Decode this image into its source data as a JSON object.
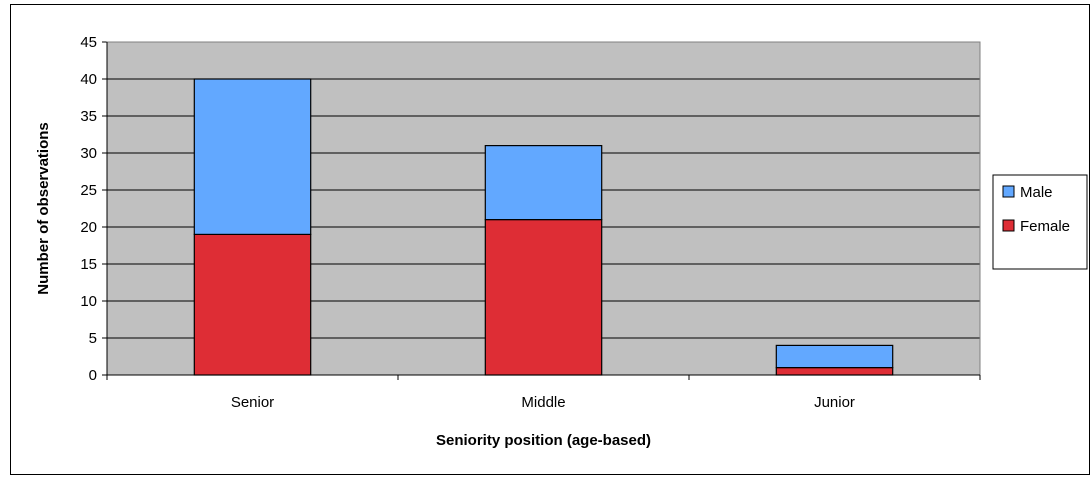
{
  "chart_data": {
    "type": "bar",
    "stacked": true,
    "categories": [
      "Senior",
      "Middle",
      "Junior"
    ],
    "series": [
      {
        "name": "Female",
        "values": [
          19,
          21,
          1
        ],
        "color": "#de2d35"
      },
      {
        "name": "Male",
        "values": [
          21,
          10,
          3
        ],
        "color": "#62a8ff"
      }
    ],
    "xlabel": "Seniority position (age-based)",
    "ylabel": "Number of observations",
    "ylim": [
      0,
      45
    ],
    "yticks": [
      0,
      5,
      10,
      15,
      20,
      25,
      30,
      35,
      40,
      45
    ],
    "grid": true,
    "plot_background": "#c0c0c0",
    "legend": {
      "placement": "right",
      "entries": [
        "Male",
        "Female"
      ]
    }
  }
}
